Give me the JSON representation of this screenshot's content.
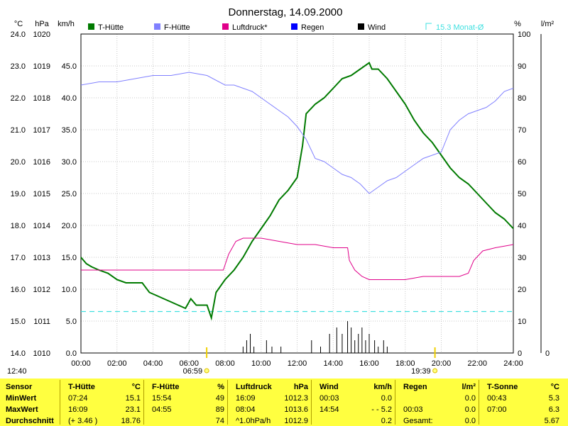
{
  "title": "Donnerstag, 14.09.2000",
  "axis_headers": {
    "temp_unit": "°C",
    "pressure_unit": "hPa",
    "wind_unit": "km/h",
    "humidity_unit": "%",
    "rain_unit": "l/m²"
  },
  "legend": [
    {
      "label": "T-Hütte",
      "color": "#007a00"
    },
    {
      "label": "F-Hütte",
      "color": "#8080ff"
    },
    {
      "label": "Luftdruck*",
      "color": "#e0008a"
    },
    {
      "label": "Regen",
      "color": "#0000ff"
    },
    {
      "label": "Wind",
      "color": "#000000"
    }
  ],
  "monat_avg_label": "15.3 Monat-Ø",
  "time_label": "12:40",
  "sunrise_label": "06:59",
  "sunset_label": "19:39",
  "chart_data": {
    "type": "line",
    "x_label_ticks": [
      "00:00",
      "02:00",
      "04:00",
      "06:00",
      "08:00",
      "10:00",
      "12:00",
      "14:00",
      "16:00",
      "18:00",
      "20:00",
      "22:00",
      "24:00"
    ],
    "axes": {
      "temp": {
        "unit": "°C",
        "ticks": [
          "24.0",
          "23.0",
          "22.0",
          "21.0",
          "20.0",
          "19.0",
          "18.0",
          "17.0",
          "16.0",
          "15.0",
          "14.0"
        ],
        "range": [
          14,
          24
        ]
      },
      "pressure": {
        "unit": "hPa",
        "ticks": [
          "1020",
          "1019",
          "1018",
          "1017",
          "1016",
          "1015",
          "1014",
          "1013",
          "1012",
          "1011",
          "1010"
        ],
        "range": [
          1010,
          1020
        ]
      },
      "wind": {
        "unit": "km/h",
        "ticks": [
          "45.0",
          "40.0",
          "35.0",
          "30.0",
          "25.0",
          "20.0",
          "15.0",
          "10.0",
          "5.0",
          "0.0"
        ],
        "range": [
          0,
          50
        ]
      },
      "humidity": {
        "unit": "%",
        "ticks": [
          "100",
          "90",
          "80",
          "70",
          "60",
          "50",
          "40",
          "30",
          "20",
          "10",
          "0"
        ],
        "range": [
          0,
          100
        ]
      },
      "rain": {
        "unit": "l/m²",
        "ticks": [
          "0"
        ],
        "range": [
          0,
          10
        ]
      }
    },
    "grid": true,
    "series": [
      {
        "name": "T-Hütte",
        "axis": "temp",
        "color": "#007a00",
        "x": [
          0,
          0.3,
          0.6,
          1,
          1.5,
          2,
          2.5,
          3,
          3.4,
          3.8,
          4.2,
          4.6,
          5,
          5.4,
          5.8,
          6.1,
          6.4,
          6.7,
          7,
          7.24,
          7.5,
          8,
          8.5,
          9,
          9.5,
          10,
          10.5,
          11,
          11.5,
          12,
          12.3,
          12.5,
          13,
          13.5,
          14,
          14.5,
          15,
          15.5,
          16,
          16.15,
          16.5,
          17,
          17.5,
          18,
          18.5,
          19,
          19.5,
          20,
          20.5,
          21,
          21.5,
          22,
          22.5,
          23,
          23.5,
          24
        ],
        "y": [
          17.0,
          16.8,
          16.7,
          16.6,
          16.5,
          16.3,
          16.2,
          16.2,
          16.2,
          15.9,
          15.8,
          15.7,
          15.6,
          15.5,
          15.4,
          15.7,
          15.5,
          15.5,
          15.5,
          15.1,
          15.9,
          16.3,
          16.6,
          17.0,
          17.5,
          17.9,
          18.3,
          18.8,
          19.1,
          19.5,
          20.5,
          21.5,
          21.8,
          22.0,
          22.3,
          22.6,
          22.7,
          22.9,
          23.1,
          22.9,
          22.9,
          22.6,
          22.2,
          21.8,
          21.3,
          20.9,
          20.6,
          20.2,
          19.8,
          19.5,
          19.3,
          19.0,
          18.7,
          18.4,
          18.2,
          17.9
        ]
      },
      {
        "name": "F-Hütte",
        "axis": "humidity",
        "color": "#8080ff",
        "x": [
          0,
          1,
          2,
          3,
          4,
          5,
          6,
          7,
          8,
          8.5,
          9,
          9.5,
          10,
          10.5,
          11,
          11.5,
          12,
          12.5,
          13,
          13.5,
          14,
          14.5,
          15,
          15.5,
          16,
          16.5,
          17,
          17.5,
          18,
          18.5,
          19,
          19.5,
          20,
          20.5,
          21,
          21.5,
          22,
          22.5,
          23,
          23.5,
          24
        ],
        "y": [
          84,
          85,
          85,
          86,
          87,
          87,
          88,
          87,
          84,
          84,
          83,
          82,
          80,
          78,
          76,
          74,
          71,
          67,
          61,
          60,
          58,
          56,
          55,
          53,
          50,
          52,
          54,
          55,
          57,
          59,
          61,
          62,
          63,
          70,
          73,
          75,
          76,
          77,
          79,
          82,
          83
        ]
      },
      {
        "name": "Luftdruck*",
        "axis": "pressure",
        "color": "#e0008a",
        "x": [
          0,
          1,
          2,
          3,
          4,
          5,
          6,
          7,
          7.9,
          8.2,
          8.6,
          9,
          10,
          11,
          12,
          13,
          14,
          14.8,
          14.9,
          15.2,
          15.6,
          16,
          17,
          18,
          19,
          20,
          21,
          21.5,
          21.8,
          22.3,
          23,
          24
        ],
        "y": [
          1012.6,
          1012.6,
          1012.6,
          1012.6,
          1012.6,
          1012.6,
          1012.6,
          1012.6,
          1012.6,
          1013.1,
          1013.5,
          1013.6,
          1013.6,
          1013.5,
          1013.4,
          1013.4,
          1013.3,
          1013.3,
          1012.9,
          1012.6,
          1012.4,
          1012.3,
          1012.3,
          1012.3,
          1012.4,
          1012.4,
          1012.4,
          1012.5,
          1012.9,
          1013.2,
          1013.3,
          1013.4
        ]
      },
      {
        "name": "Wind",
        "axis": "wind",
        "type": "bar",
        "color": "#000000",
        "x": [
          9.0,
          9.2,
          9.4,
          9.6,
          10.3,
          10.6,
          11.1,
          12.8,
          13.3,
          13.8,
          14.2,
          14.5,
          14.8,
          15.0,
          15.2,
          15.4,
          15.6,
          15.8,
          16.0,
          16.3,
          16.5,
          16.8,
          17.0
        ],
        "y": [
          1,
          2,
          3,
          1,
          2,
          1,
          1,
          2,
          1,
          3,
          4,
          3,
          5,
          4,
          2,
          3,
          4,
          2,
          3,
          2,
          1,
          2,
          1
        ]
      }
    ],
    "reference_lines": [
      {
        "label": "15.3 Monat-Ø",
        "axis": "temp",
        "value": 15.3,
        "color": "#40e0e0"
      }
    ],
    "sun_markers": [
      {
        "label": "06:59",
        "x": 6.98
      },
      {
        "label": "19:39",
        "x": 19.65
      }
    ]
  },
  "summary": {
    "row_labels": {
      "header": "Sensor",
      "min": "MinWert",
      "max": "MaxWert",
      "avg": "Durchschnitt"
    },
    "blocks": [
      {
        "name": "T-Hütte",
        "unit": "°C",
        "min_time": "07:24",
        "min": "15.1",
        "max_time": "16:09",
        "max": "23.1",
        "avg_note": "(+ 3.46 )",
        "avg": "18.76"
      },
      {
        "name": "F-Hütte",
        "unit": "%",
        "min_time": "15:54",
        "min": "49",
        "max_time": "04:55",
        "max": "89",
        "avg_note": "",
        "avg": "74"
      },
      {
        "name": "Luftdruck",
        "unit": "hPa",
        "min_time": "16:09",
        "min": "1012.3",
        "max_time": "08:04",
        "max": "1013.6",
        "avg_note": "^1.0hPa/h",
        "avg": "1012.9"
      },
      {
        "name": "Wind",
        "unit": "km/h",
        "min_time": "00:03",
        "min": "0.0",
        "max_time": "14:54",
        "max": "- - 5.2",
        "avg_note": "",
        "avg": "0.2"
      },
      {
        "name": "Regen",
        "unit": "l/m²",
        "min_time": "",
        "min": "0.0",
        "max_time": "00:03",
        "max": "0.0",
        "avg_note": "Gesamt:",
        "avg": "0.0"
      },
      {
        "name": "T-Sonne",
        "unit": "°C",
        "min_time": "00:43",
        "min": "5.3",
        "max_time": "07:00",
        "max": "6.3",
        "avg_note": "",
        "avg": "5.67"
      }
    ]
  }
}
